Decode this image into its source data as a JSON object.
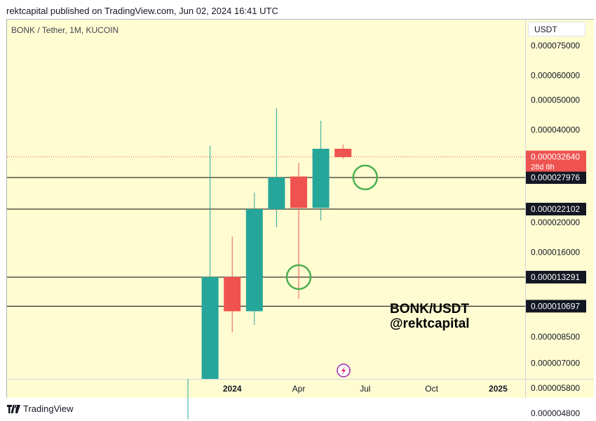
{
  "header": {
    "published_text": "rektcapital published on TradingView.com, Jun 02, 2024 16:41 UTC"
  },
  "chart_title": "BONK / Tether, 1M, KUCOIN",
  "currency_button": "USDT",
  "watermark": {
    "line1": "BONK/USDT",
    "line2": "@rektcapital"
  },
  "footer": {
    "brand": "TradingView"
  },
  "colors": {
    "up": "#26a69a",
    "down": "#ef5350",
    "background": "#fffcd2",
    "circle": "#4caf50",
    "label_dark": "#131722"
  },
  "chart_data": {
    "type": "candlestick",
    "title": "BONK / Tether, 1M, KUCOIN",
    "scale": "log",
    "yaxis_ticks": [
      "0.000075000",
      "0.000060000",
      "0.000050000",
      "0.000040000",
      "0.000020000",
      "0.000016000",
      "0.000008500",
      "0.000007000",
      "0.000005800",
      "0.000004800"
    ],
    "xaxis_ticks": [
      "2024",
      "Apr",
      "Jul",
      "Oct",
      "2025"
    ],
    "candles": [
      {
        "period": "Nov 2023",
        "open": 4.3e-06,
        "high": 4.6e-06,
        "low": 4.1e-06,
        "close": 4.4e-06
      },
      {
        "period": "Dec 2023",
        "open": 4e-06,
        "high": 3.55e-05,
        "low": 3.8e-06,
        "close": 1.33e-05
      },
      {
        "period": "Jan 2024",
        "open": 1.33e-05,
        "high": 1.8e-05,
        "low": 8.8e-06,
        "close": 1.03e-05
      },
      {
        "period": "Feb 2024",
        "open": 1.03e-05,
        "high": 2.5e-05,
        "low": 9.3e-06,
        "close": 2.21e-05
      },
      {
        "period": "Mar 2024",
        "open": 2.21e-05,
        "high": 4.7e-05,
        "low": 1.93e-05,
        "close": 2.8e-05
      },
      {
        "period": "Apr 2024",
        "open": 2.82e-05,
        "high": 3.12e-05,
        "low": 1.13e-05,
        "close": 2.23e-05
      },
      {
        "period": "May 2024",
        "open": 2.23e-05,
        "high": 4.28e-05,
        "low": 2.03e-05,
        "close": 3.47e-05
      },
      {
        "period": "Jun 2024",
        "open": 3.47e-05,
        "high": 3.58e-05,
        "low": 3.22e-05,
        "close": 3.26e-05
      }
    ],
    "horizontal_levels": [
      {
        "value": "0.000027976"
      },
      {
        "value": "0.000022102"
      },
      {
        "value": "0.000013291"
      },
      {
        "value": "0.000010697"
      }
    ],
    "current_price": {
      "value": "0.000032640",
      "countdown": "28d 8h"
    },
    "annotations": [
      {
        "type": "circle",
        "period": "Apr 2024",
        "price": 1.33e-05
      },
      {
        "type": "circle",
        "period": "Jul 2024",
        "price": 2.8e-05
      }
    ]
  }
}
